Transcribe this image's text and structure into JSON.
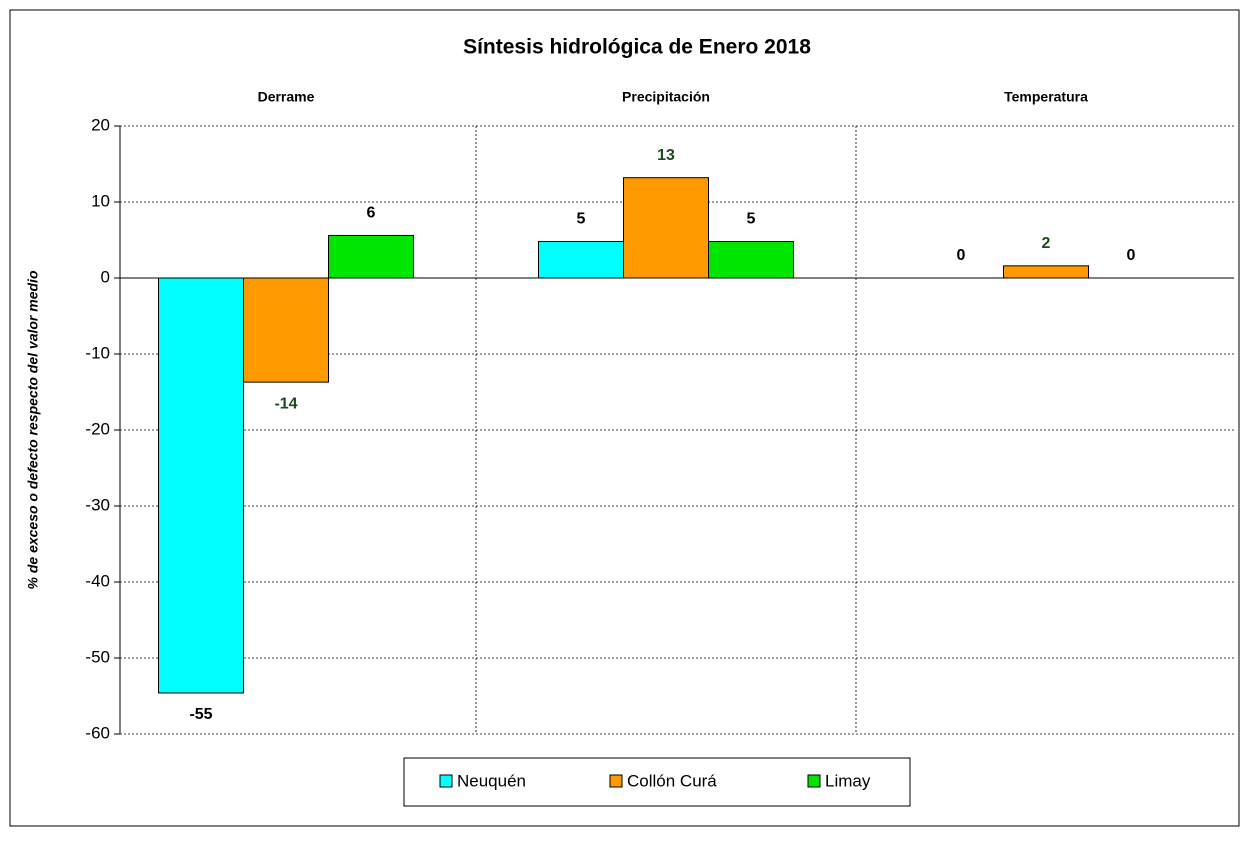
{
  "chart_data": {
    "type": "bar",
    "title": "Síntesis hidrológica de Enero 2018",
    "y_label": "% de exceso o defecto respecto del valor medio",
    "categories": [
      "Derrame",
      "Precipitación",
      "Temperatura"
    ],
    "series": [
      {
        "name": "Neuquén",
        "color": "#00ffff",
        "label_color": "#000000",
        "values": [
          -54.6,
          4.8,
          0
        ],
        "value_labels": [
          "-55",
          "5",
          "0"
        ]
      },
      {
        "name": "Collón Curá",
        "color": "#ff9900",
        "label_color": "#1a4d1a",
        "values": [
          -13.7,
          13.2,
          1.6
        ],
        "value_labels": [
          "-14",
          "13",
          "2"
        ]
      },
      {
        "name": "Limay",
        "color": "#00e600",
        "label_color": "#000000",
        "values": [
          5.6,
          4.8,
          0
        ],
        "value_labels": [
          "6",
          "5",
          "0"
        ]
      }
    ],
    "ylim": [
      -60,
      20
    ],
    "yticks": [
      -60,
      -50,
      -40,
      -30,
      -20,
      -10,
      0,
      10,
      20
    ],
    "grid": true
  }
}
